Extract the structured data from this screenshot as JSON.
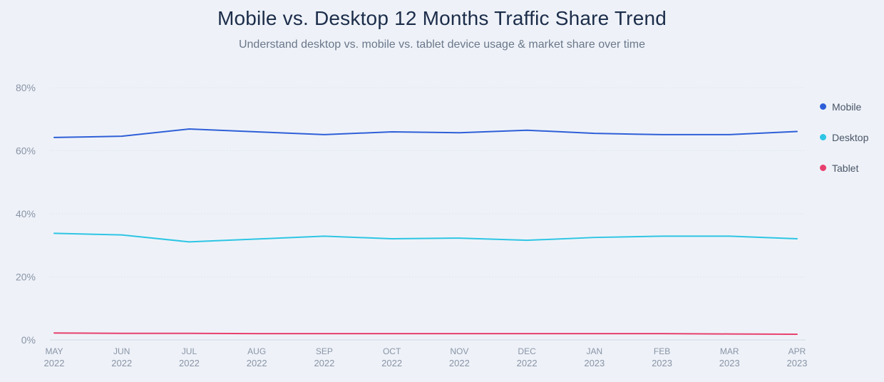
{
  "chart_data": {
    "type": "line",
    "title": "Mobile vs. Desktop 12 Months Traffic Share Trend",
    "subtitle": "Understand desktop vs. mobile vs. tablet device usage & market share over time",
    "xlabel": "",
    "ylabel": "",
    "ylim": [
      0,
      80
    ],
    "yticks": [
      "0%",
      "20%",
      "40%",
      "60%",
      "80%"
    ],
    "ytick_values": [
      0,
      20,
      40,
      60,
      80
    ],
    "categories": [
      [
        "MAY",
        "2022"
      ],
      [
        "JUN",
        "2022"
      ],
      [
        "JUL",
        "2022"
      ],
      [
        "AUG",
        "2022"
      ],
      [
        "SEP",
        "2022"
      ],
      [
        "OCT",
        "2022"
      ],
      [
        "NOV",
        "2022"
      ],
      [
        "DEC",
        "2022"
      ],
      [
        "JAN",
        "2023"
      ],
      [
        "FEB",
        "2023"
      ],
      [
        "MAR",
        "2023"
      ],
      [
        "APR",
        "2023"
      ]
    ],
    "series": [
      {
        "name": "Mobile",
        "color": "#2f5fd8",
        "values": [
          64.2,
          64.6,
          66.9,
          66.0,
          65.1,
          66.0,
          65.7,
          66.5,
          65.5,
          65.1,
          65.1,
          66.1
        ]
      },
      {
        "name": "Desktop",
        "color": "#2ec5e4",
        "values": [
          33.8,
          33.3,
          31.1,
          32.0,
          32.9,
          32.1,
          32.3,
          31.6,
          32.5,
          32.9,
          32.9,
          32.1
        ]
      },
      {
        "name": "Tablet",
        "color": "#e8406e",
        "values": [
          2.2,
          2.1,
          2.1,
          2.0,
          2.0,
          2.0,
          2.0,
          2.0,
          2.0,
          2.0,
          1.9,
          1.8
        ]
      }
    ],
    "grid": true,
    "legend_position": "right"
  }
}
